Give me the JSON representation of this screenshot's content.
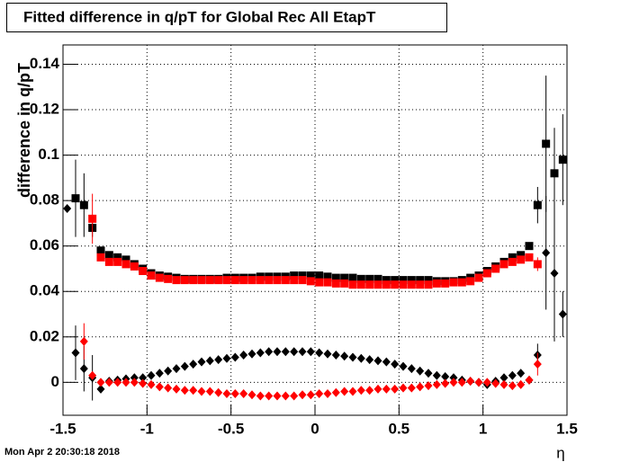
{
  "chart_data": {
    "type": "scatter",
    "title": "Fitted difference in q/pT for Global Rec All EtapT",
    "y_label": "difference in q/pT",
    "x_label": "η",
    "timestamp": "Mon Apr  2 20:30:18 2018",
    "xlim": [
      -1.5,
      1.5
    ],
    "xticks": [
      -1.5,
      -1,
      -0.5,
      0,
      0.5,
      1,
      1.5
    ],
    "ylim": [
      -0.0145,
      0.1485
    ],
    "yticks": [
      0,
      0.02,
      0.04,
      0.06,
      0.08,
      0.1,
      0.12,
      0.14
    ],
    "grid": true,
    "x": [
      -1.475,
      -1.425,
      -1.375,
      -1.325,
      -1.275,
      -1.225,
      -1.175,
      -1.125,
      -1.075,
      -1.025,
      -0.975,
      -0.925,
      -0.875,
      -0.825,
      -0.775,
      -0.725,
      -0.675,
      -0.625,
      -0.575,
      -0.525,
      -0.475,
      -0.425,
      -0.375,
      -0.325,
      -0.275,
      -0.225,
      -0.175,
      -0.125,
      -0.075,
      -0.025,
      0.025,
      0.075,
      0.125,
      0.175,
      0.225,
      0.275,
      0.325,
      0.375,
      0.425,
      0.475,
      0.525,
      0.575,
      0.625,
      0.675,
      0.725,
      0.775,
      0.825,
      0.875,
      0.925,
      0.975,
      1.025,
      1.075,
      1.125,
      1.175,
      1.225,
      1.275,
      1.325,
      1.375,
      1.425,
      1.475
    ],
    "series": [
      {
        "color": "#000000",
        "marker": "square",
        "values": [
          null,
          0.081,
          0.078,
          0.068,
          0.058,
          0.056,
          0.055,
          0.054,
          0.052,
          0.05,
          0.048,
          0.047,
          0.0465,
          0.046,
          0.0455,
          0.0455,
          0.0455,
          0.0455,
          0.0455,
          0.046,
          0.046,
          0.046,
          0.046,
          0.0465,
          0.0465,
          0.0465,
          0.0465,
          0.047,
          0.047,
          0.047,
          0.047,
          0.0465,
          0.046,
          0.046,
          0.046,
          0.0455,
          0.0455,
          0.0455,
          0.045,
          0.045,
          0.045,
          0.045,
          0.045,
          0.045,
          0.0445,
          0.0445,
          0.0445,
          0.045,
          0.046,
          0.047,
          0.049,
          0.051,
          0.053,
          0.055,
          0.056,
          0.06,
          0.078,
          0.105,
          0.092,
          0.098
        ],
        "errors": [
          null,
          0.017,
          0.014,
          0.004,
          null,
          null,
          null,
          null,
          null,
          null,
          null,
          null,
          null,
          null,
          null,
          null,
          null,
          null,
          null,
          null,
          null,
          null,
          null,
          null,
          null,
          null,
          null,
          null,
          null,
          null,
          null,
          null,
          null,
          null,
          null,
          null,
          null,
          null,
          null,
          null,
          null,
          null,
          null,
          null,
          null,
          null,
          null,
          null,
          null,
          null,
          null,
          null,
          null,
          null,
          null,
          null,
          0.008,
          0.03,
          0.02,
          0.02
        ]
      },
      {
        "color": "#ff0000",
        "marker": "square",
        "values": [
          null,
          null,
          null,
          0.072,
          0.055,
          0.053,
          0.053,
          0.052,
          0.051,
          0.049,
          0.047,
          0.046,
          0.0455,
          0.045,
          0.045,
          0.045,
          0.045,
          0.045,
          0.045,
          0.045,
          0.045,
          0.045,
          0.045,
          0.045,
          0.045,
          0.045,
          0.045,
          0.045,
          0.045,
          0.0445,
          0.044,
          0.044,
          0.0435,
          0.0435,
          0.043,
          0.043,
          0.043,
          0.043,
          0.043,
          0.043,
          0.043,
          0.043,
          0.043,
          0.043,
          0.0435,
          0.0435,
          0.044,
          0.044,
          0.0445,
          0.046,
          0.048,
          0.05,
          0.052,
          0.053,
          0.054,
          0.055,
          0.052,
          null,
          null,
          null
        ],
        "errors": [
          null,
          null,
          null,
          0.011,
          null,
          null,
          null,
          null,
          null,
          null,
          null,
          null,
          null,
          null,
          null,
          null,
          null,
          null,
          null,
          null,
          null,
          null,
          null,
          null,
          null,
          null,
          null,
          null,
          null,
          null,
          null,
          null,
          null,
          null,
          null,
          null,
          null,
          null,
          null,
          null,
          null,
          null,
          null,
          null,
          null,
          null,
          null,
          null,
          null,
          null,
          null,
          null,
          null,
          null,
          null,
          null,
          0.003,
          null,
          null,
          null
        ]
      },
      {
        "color": "#000000",
        "marker": "diamond",
        "values": [
          0.0765,
          0.013,
          0.006,
          0.002,
          -0.003,
          0.0005,
          0.001,
          0.0015,
          0.002,
          0.002,
          0.003,
          0.004,
          0.005,
          0.006,
          0.007,
          0.008,
          0.009,
          0.0095,
          0.01,
          0.0105,
          0.011,
          0.012,
          0.0125,
          0.013,
          0.0135,
          0.0135,
          0.0135,
          0.0135,
          0.0135,
          0.0135,
          0.013,
          0.0125,
          0.012,
          0.0115,
          0.011,
          0.0105,
          0.01,
          0.0095,
          0.009,
          0.008,
          0.007,
          0.006,
          0.005,
          0.004,
          0.003,
          0.0025,
          0.002,
          0.001,
          0.0005,
          0,
          -0.001,
          0.0005,
          0.002,
          0.003,
          0.004,
          0.001,
          0.012,
          0.057,
          0.048,
          0.03
        ],
        "errors": [
          null,
          0.012,
          0.01,
          0.01,
          null,
          null,
          null,
          null,
          null,
          null,
          null,
          null,
          null,
          null,
          null,
          null,
          null,
          null,
          null,
          null,
          null,
          null,
          null,
          null,
          null,
          null,
          null,
          null,
          null,
          null,
          null,
          null,
          null,
          null,
          null,
          null,
          null,
          null,
          null,
          null,
          null,
          null,
          null,
          null,
          null,
          null,
          null,
          null,
          null,
          null,
          null,
          null,
          null,
          null,
          null,
          null,
          0.005,
          0.025,
          0.03,
          0.01
        ]
      },
      {
        "color": "#ff0000",
        "marker": "diamond",
        "values": [
          null,
          null,
          0.018,
          0.003,
          0,
          0,
          0,
          0,
          0,
          -0.0005,
          -0.001,
          -0.002,
          -0.0025,
          -0.003,
          -0.0035,
          -0.0035,
          -0.004,
          -0.004,
          -0.0045,
          -0.005,
          -0.005,
          -0.005,
          -0.0055,
          -0.006,
          -0.006,
          -0.006,
          -0.006,
          -0.006,
          -0.0055,
          -0.0055,
          -0.005,
          -0.005,
          -0.0045,
          -0.004,
          -0.004,
          -0.0035,
          -0.0035,
          -0.003,
          -0.003,
          -0.003,
          -0.0025,
          -0.0025,
          -0.002,
          -0.0015,
          -0.001,
          -0.0005,
          0,
          0,
          0.0005,
          0,
          0,
          -0.0005,
          -0.001,
          -0.0015,
          -0.001,
          0.001,
          0.008,
          null,
          null,
          null
        ],
        "errors": [
          null,
          null,
          0.008,
          null,
          null,
          null,
          null,
          null,
          null,
          null,
          null,
          null,
          null,
          null,
          null,
          null,
          null,
          null,
          null,
          null,
          null,
          null,
          null,
          null,
          null,
          null,
          null,
          null,
          null,
          null,
          null,
          null,
          null,
          null,
          null,
          null,
          null,
          null,
          null,
          null,
          null,
          null,
          null,
          null,
          null,
          null,
          null,
          null,
          null,
          null,
          null,
          null,
          null,
          null,
          null,
          null,
          0.005,
          null,
          null,
          null
        ]
      }
    ]
  }
}
